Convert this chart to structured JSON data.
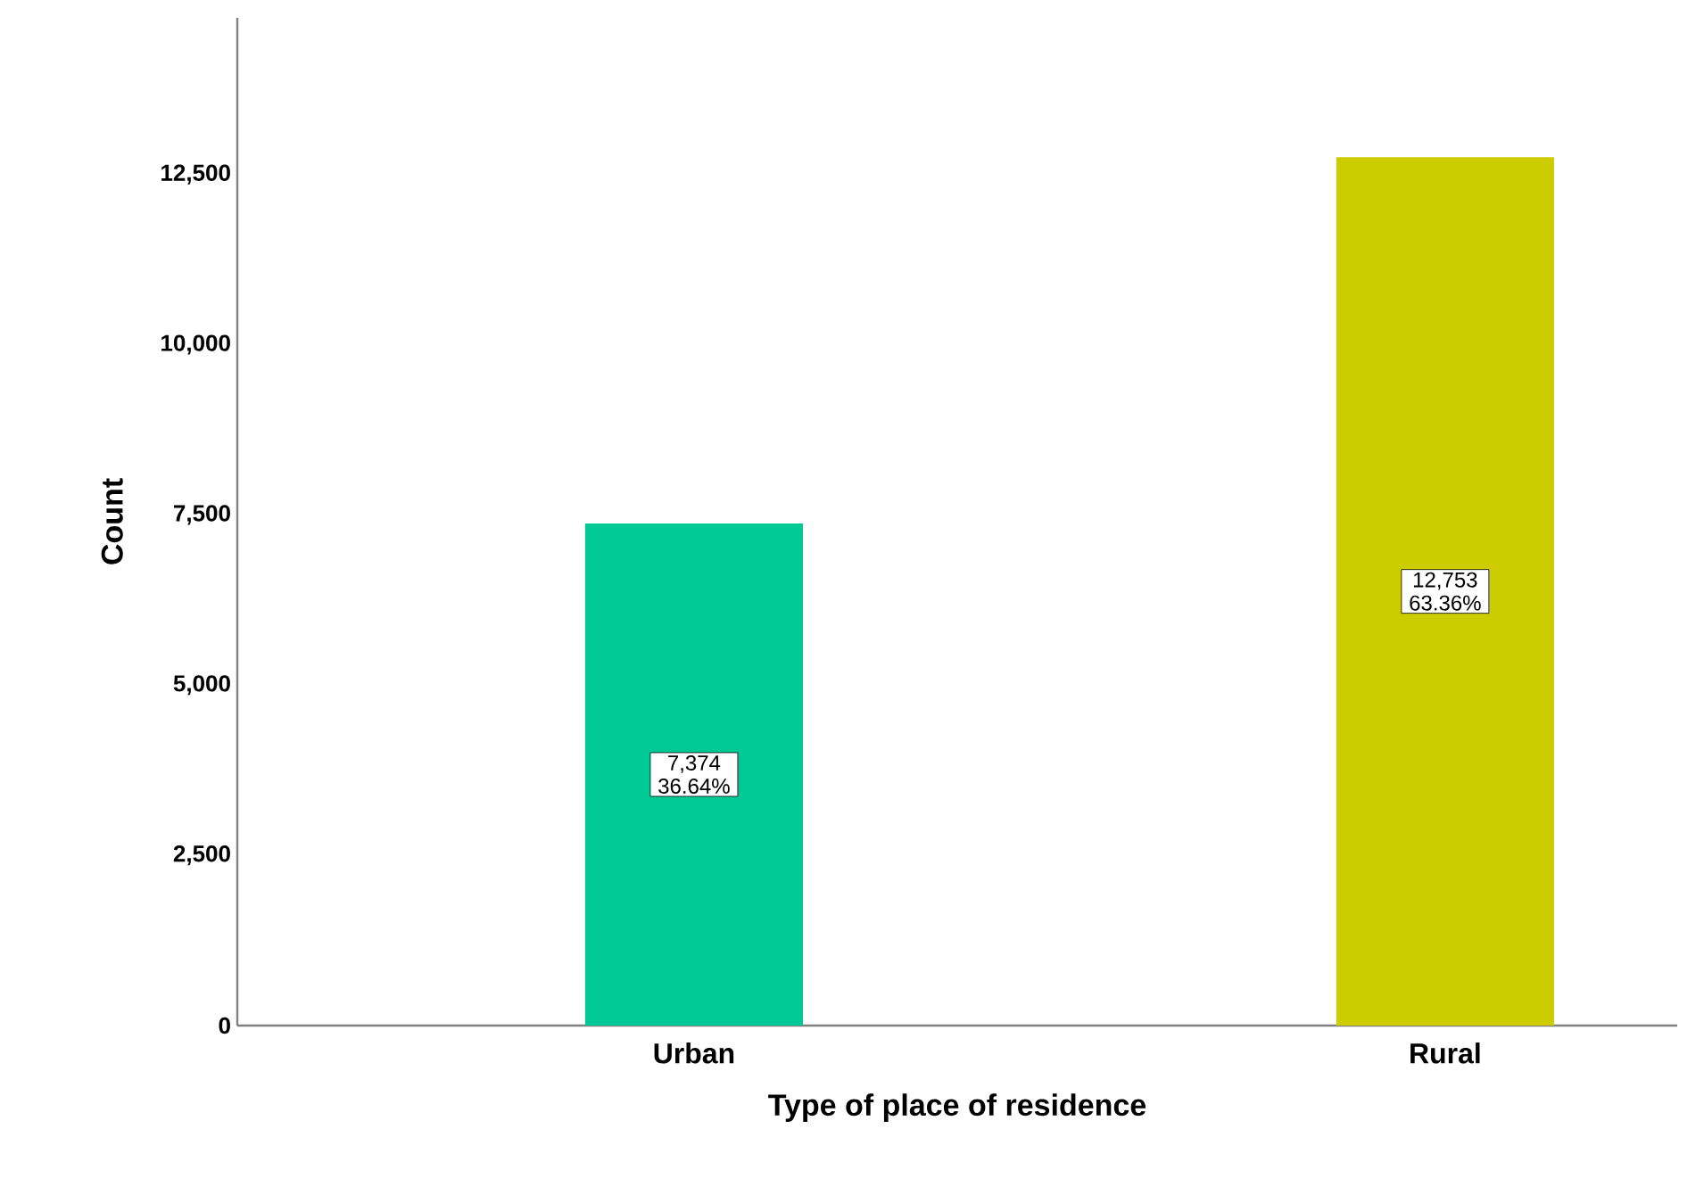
{
  "chart_data": {
    "type": "bar",
    "xlabel": "Type of place of residence",
    "ylabel": "Count",
    "categories": [
      "Urban",
      "Rural"
    ],
    "values": [
      7374,
      12753
    ],
    "colors": [
      "#00c996",
      "#cccc00"
    ],
    "value_labels": [
      "7,374 36.64%",
      "12,753 63.36%"
    ],
    "ylim": [
      0,
      14800
    ],
    "yticks": [
      0,
      {
        "value": 2500,
        "label": "2,500"
      },
      {
        "value": 5000,
        "label": "5,000"
      },
      {
        "value": 7500,
        "label": "7,500"
      },
      {
        "value": 10000,
        "label": "10,000"
      },
      {
        "value": 12500,
        "label": "12,500"
      }
    ],
    "grid": false
  }
}
